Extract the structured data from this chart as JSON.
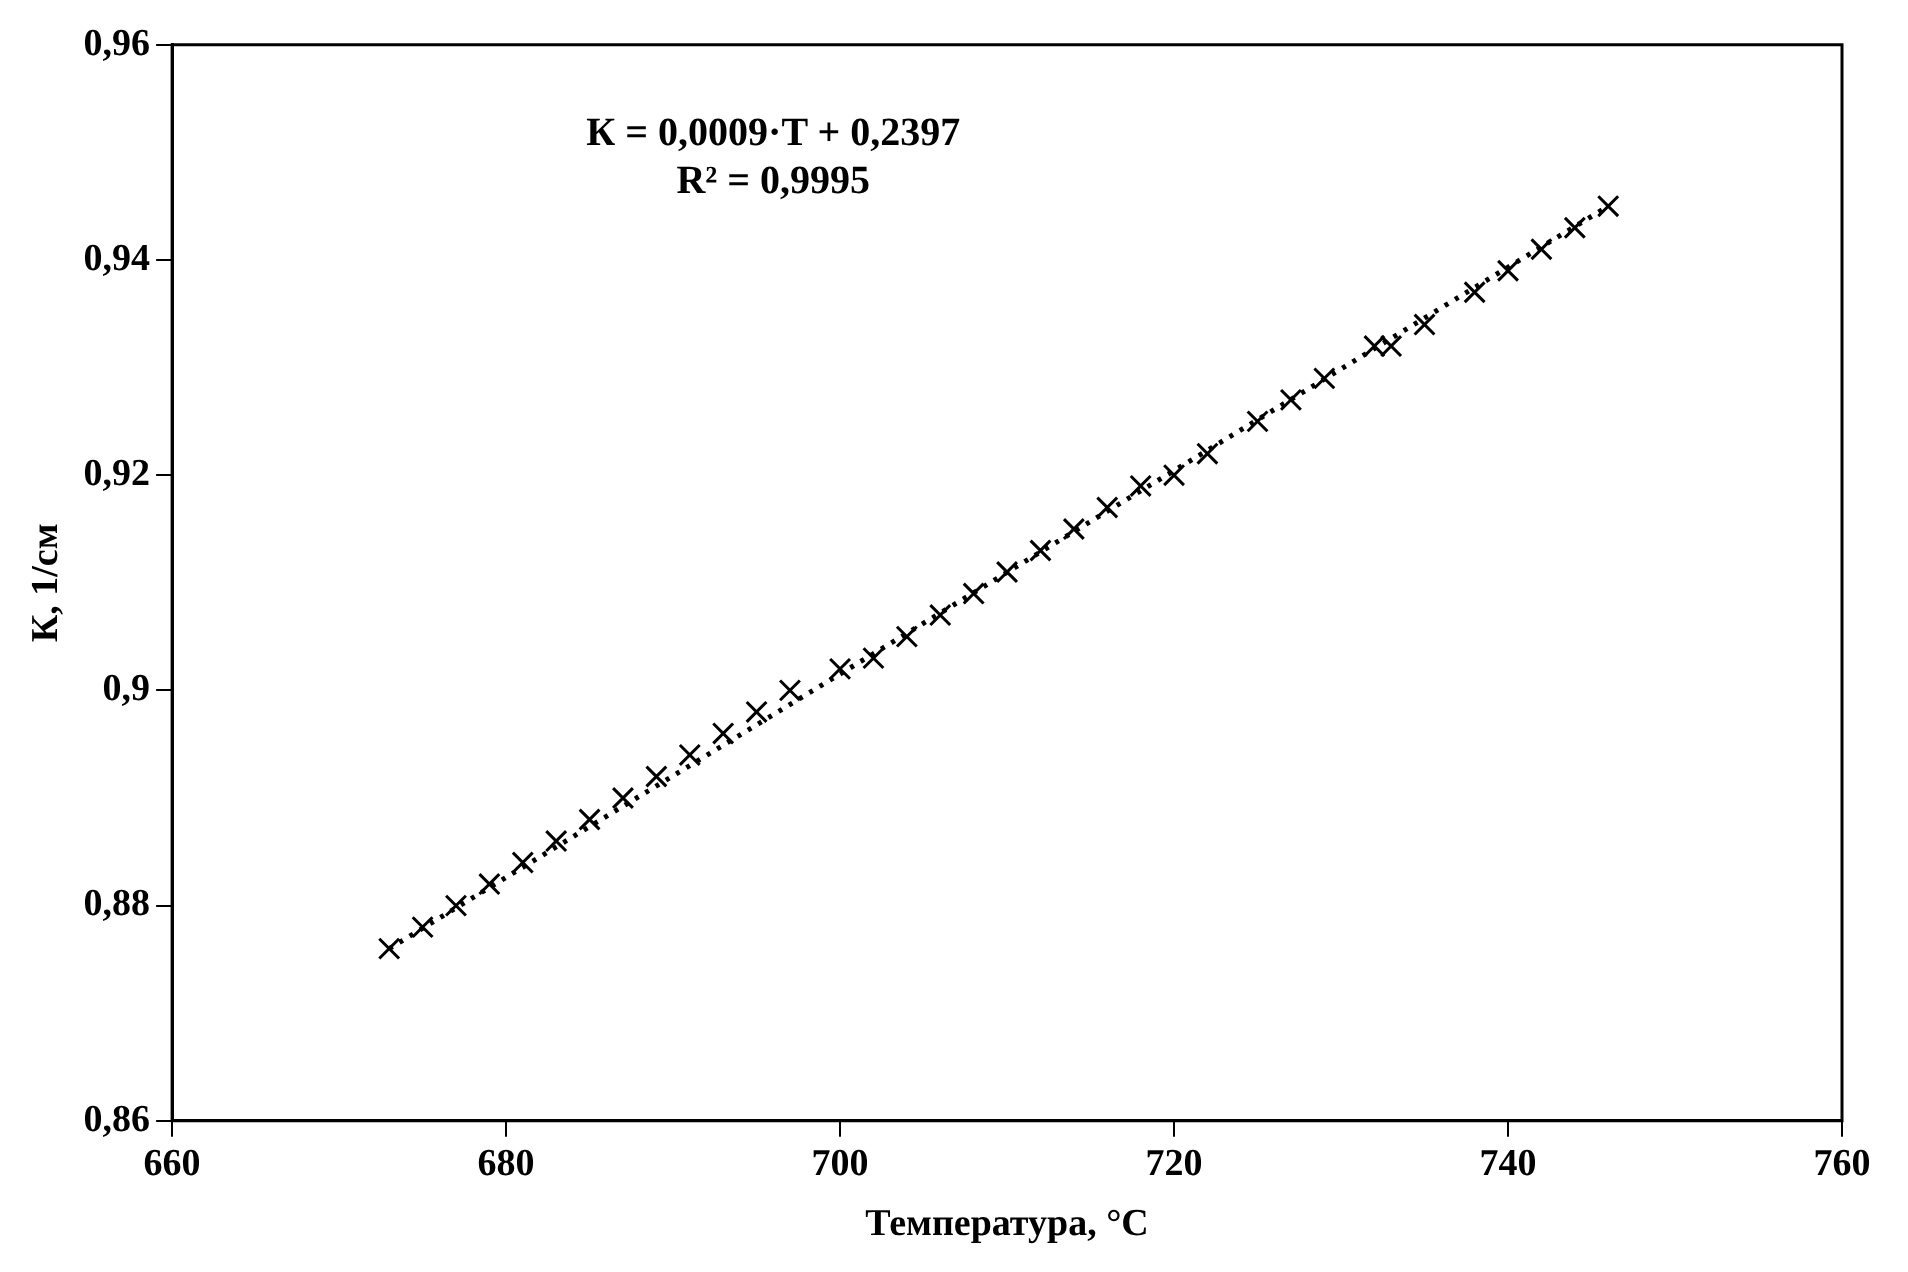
{
  "chart_data": {
    "type": "scatter",
    "xlabel": "Температура, °C",
    "ylabel": "К, 1/см",
    "annotations": [
      "К = 0,0009·T + 0,2397",
      "R² = 0,9995"
    ],
    "xlim": [
      660,
      760
    ],
    "xticks": [
      660,
      680,
      700,
      720,
      740,
      760
    ],
    "ylim": [
      0.86,
      0.96
    ],
    "yticks": [
      {
        "value": 0.86,
        "label": "0,86"
      },
      {
        "value": 0.88,
        "label": "0,88"
      },
      {
        "value": 0.9,
        "label": "0,9"
      },
      {
        "value": 0.92,
        "label": "0,92"
      },
      {
        "value": 0.94,
        "label": "0,94"
      },
      {
        "value": 0.96,
        "label": "0,96"
      }
    ],
    "grid": false,
    "legend": false,
    "series": [
      {
        "type": "scatter",
        "color": "#000000",
        "marker": "cross",
        "x": [
          673,
          675,
          677,
          679,
          681,
          683,
          685,
          687,
          689,
          691,
          693,
          695,
          697,
          700,
          702,
          704,
          706,
          708,
          710,
          712,
          714,
          716,
          718,
          720,
          722,
          725,
          727,
          729,
          732,
          733,
          735,
          738,
          740,
          742,
          744,
          746
        ],
        "values": [
          0.876,
          0.878,
          0.88,
          0.882,
          0.884,
          0.886,
          0.888,
          0.89,
          0.892,
          0.894,
          0.896,
          0.898,
          0.9,
          0.902,
          0.903,
          0.905,
          0.907,
          0.909,
          0.911,
          0.913,
          0.915,
          0.917,
          0.919,
          0.92,
          0.922,
          0.925,
          0.927,
          0.929,
          0.932,
          0.932,
          0.934,
          0.937,
          0.939,
          0.941,
          0.943,
          0.945
        ]
      },
      {
        "type": "line",
        "color": "#000000",
        "marker": "none",
        "line_style": "dotted",
        "x": [
          673,
          746
        ],
        "values": [
          0.876,
          0.945
        ]
      }
    ]
  }
}
